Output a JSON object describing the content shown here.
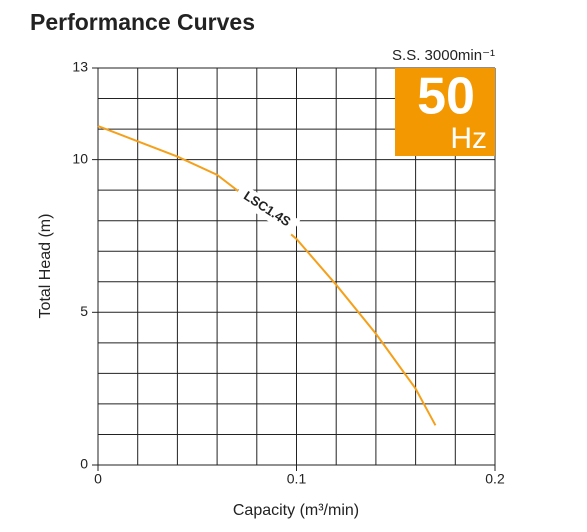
{
  "chart_data": {
    "type": "line",
    "title": "Performance Curves",
    "xlabel": "Capacity (m³/min)",
    "ylabel": "Total Head (m)",
    "annotations": {
      "speed": "S.S. 3000min⁻¹",
      "frequency": "50",
      "unit": "Hz"
    },
    "x": [
      0,
      0.02,
      0.04,
      0.06,
      0.08,
      0.1,
      0.12,
      0.14,
      0.16,
      0.17
    ],
    "series": [
      {
        "name": "LSC1.4S",
        "color": "#f5a01a",
        "values": [
          11.1,
          10.6,
          10.1,
          9.5,
          8.5,
          7.4,
          5.9,
          4.3,
          2.5,
          1.3
        ]
      }
    ],
    "xlim": [
      0,
      0.2
    ],
    "xticks": [
      0,
      0.1,
      0.2
    ],
    "ylim": [
      0,
      13
    ],
    "yticks": [
      0,
      5,
      10,
      13
    ],
    "grid": true,
    "badge_color": "#f39800"
  }
}
